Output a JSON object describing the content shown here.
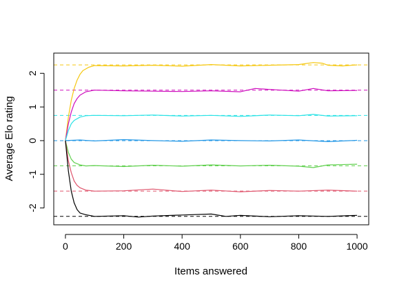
{
  "chart_data": {
    "type": "line",
    "title": "",
    "xlabel": "Items answered",
    "ylabel": "Average Elo rating",
    "xlim": [
      -40,
      1040
    ],
    "ylim": [
      -2.5,
      2.6
    ],
    "x_ticks": [
      0,
      200,
      400,
      600,
      800,
      1000
    ],
    "x_tick_labels": [
      "0",
      "200",
      "400",
      "600",
      "800",
      "1000"
    ],
    "y_ticks": [
      -2,
      -1,
      0,
      1,
      2
    ],
    "y_tick_labels": [
      "-2",
      "-1",
      "0",
      "1",
      "2"
    ],
    "grid": false,
    "legend": "none",
    "reference_lines": [
      {
        "y": 2.25,
        "color": "#F5C710",
        "style": "dashed"
      },
      {
        "y": 1.5,
        "color": "#CD0BBC",
        "style": "dashed"
      },
      {
        "y": 0.75,
        "color": "#28E2E5",
        "style": "dashed"
      },
      {
        "y": 0.0,
        "color": "#2297E6",
        "style": "dashed"
      },
      {
        "y": -0.75,
        "color": "#61D04F",
        "style": "dashed"
      },
      {
        "y": -1.5,
        "color": "#DF536B",
        "style": "dashed"
      },
      {
        "y": -2.25,
        "color": "#000000",
        "style": "dashed"
      }
    ],
    "series": [
      {
        "color": "#F5C710",
        "x": [
          0,
          10,
          20,
          30,
          40,
          50,
          60,
          80,
          100,
          200,
          300,
          400,
          500,
          600,
          700,
          800,
          850,
          880,
          900,
          950,
          1000
        ],
        "y": [
          0,
          0.7,
          1.2,
          1.55,
          1.8,
          1.97,
          2.08,
          2.18,
          2.23,
          2.22,
          2.24,
          2.21,
          2.26,
          2.22,
          2.24,
          2.26,
          2.32,
          2.3,
          2.24,
          2.22,
          2.25
        ]
      },
      {
        "color": "#CD0BBC",
        "x": [
          0,
          10,
          20,
          30,
          40,
          50,
          70,
          100,
          200,
          300,
          400,
          500,
          600,
          650,
          700,
          800,
          850,
          900,
          1000
        ],
        "y": [
          0,
          0.5,
          0.85,
          1.1,
          1.25,
          1.35,
          1.45,
          1.5,
          1.48,
          1.47,
          1.46,
          1.48,
          1.45,
          1.55,
          1.52,
          1.47,
          1.55,
          1.48,
          1.49
        ]
      },
      {
        "color": "#28E2E5",
        "x": [
          0,
          10,
          20,
          30,
          50,
          70,
          100,
          200,
          300,
          400,
          500,
          600,
          700,
          800,
          850,
          900,
          1000
        ],
        "y": [
          0,
          0.3,
          0.5,
          0.6,
          0.7,
          0.74,
          0.75,
          0.74,
          0.76,
          0.73,
          0.75,
          0.72,
          0.76,
          0.74,
          0.78,
          0.73,
          0.74
        ]
      },
      {
        "color": "#2297E6",
        "x": [
          0,
          50,
          100,
          200,
          300,
          400,
          500,
          600,
          700,
          800,
          900,
          1000
        ],
        "y": [
          0,
          0.02,
          -0.01,
          0.03,
          0.0,
          -0.02,
          0.02,
          0.0,
          -0.01,
          0.02,
          -0.03,
          0.01
        ]
      },
      {
        "color": "#61D04F",
        "x": [
          0,
          10,
          20,
          30,
          50,
          70,
          100,
          200,
          300,
          400,
          500,
          600,
          700,
          800,
          850,
          900,
          1000
        ],
        "y": [
          0,
          -0.35,
          -0.55,
          -0.65,
          -0.72,
          -0.75,
          -0.74,
          -0.77,
          -0.73,
          -0.76,
          -0.72,
          -0.75,
          -0.73,
          -0.76,
          -0.8,
          -0.72,
          -0.7
        ]
      },
      {
        "color": "#DF536B",
        "x": [
          0,
          10,
          20,
          30,
          40,
          50,
          70,
          100,
          200,
          300,
          400,
          500,
          600,
          700,
          800,
          900,
          1000
        ],
        "y": [
          0,
          -0.6,
          -0.95,
          -1.2,
          -1.33,
          -1.4,
          -1.47,
          -1.5,
          -1.49,
          -1.44,
          -1.51,
          -1.47,
          -1.52,
          -1.48,
          -1.5,
          -1.47,
          -1.5
        ]
      },
      {
        "color": "#000000",
        "x": [
          0,
          10,
          20,
          30,
          40,
          50,
          70,
          100,
          200,
          250,
          300,
          400,
          500,
          550,
          600,
          700,
          800,
          900,
          1000
        ],
        "y": [
          0,
          -0.9,
          -1.5,
          -1.85,
          -2.05,
          -2.15,
          -2.2,
          -2.25,
          -2.23,
          -2.27,
          -2.24,
          -2.21,
          -2.18,
          -2.25,
          -2.22,
          -2.26,
          -2.23,
          -2.25,
          -2.22
        ]
      }
    ]
  }
}
